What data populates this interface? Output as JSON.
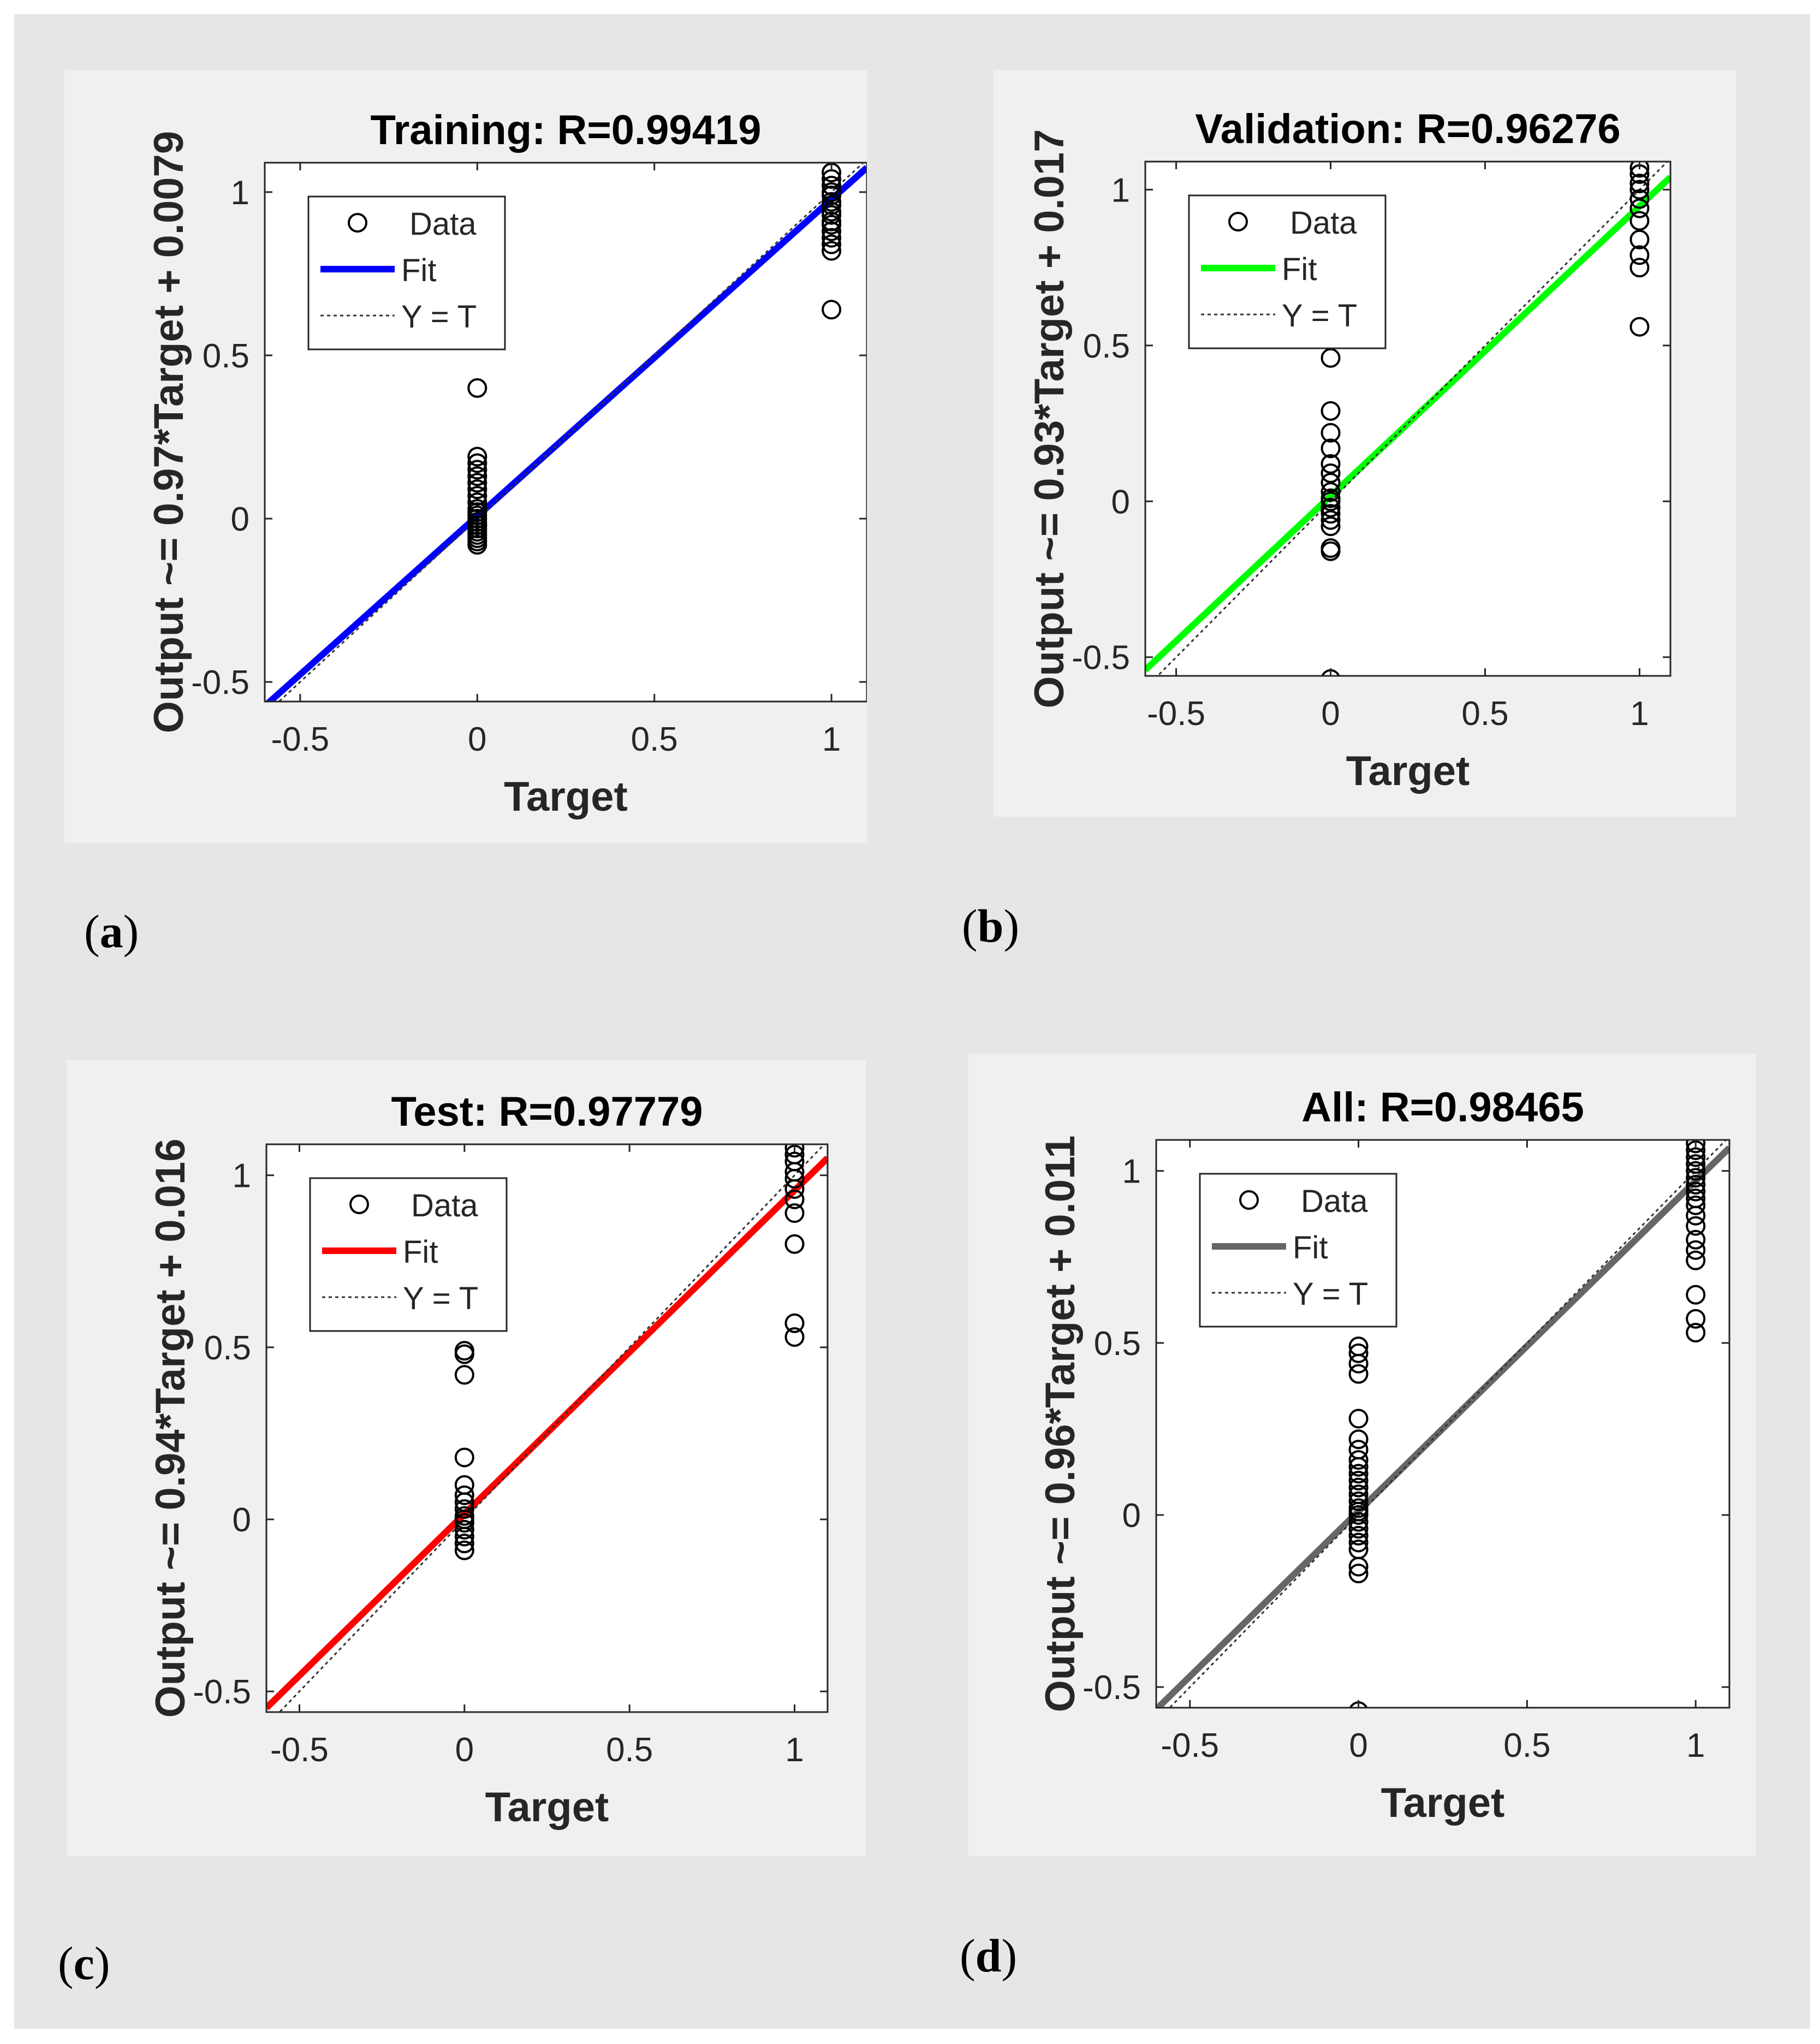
{
  "chart_data": [
    {
      "type": "scatter",
      "panel_label": "a",
      "title": "Training: R=0.99419",
      "xlabel": "Target",
      "ylabel": "Output ~= 0.97*Target + 0.0079",
      "xlim": [
        -0.6,
        1.1
      ],
      "ylim": [
        -0.56,
        1.09
      ],
      "xticks": [
        -0.5,
        0,
        0.5,
        1
      ],
      "yticks": [
        -0.5,
        0,
        0.5,
        1
      ],
      "xtick_labels": [
        "-0.5",
        "0",
        "0.5",
        "1"
      ],
      "ytick_labels": [
        "-0.5",
        "0",
        "0.5",
        "1"
      ],
      "fit": {
        "slope": 0.97,
        "intercept": 0.0079,
        "color": "#0000ff"
      },
      "legend": {
        "position": "top-left",
        "entries": [
          "Data",
          "Fit",
          "Y = T"
        ]
      },
      "series": [
        {
          "name": "Data",
          "x_values": [
            0,
            0,
            0,
            0,
            0,
            0,
            0,
            0,
            0,
            0,
            0,
            0,
            0,
            0,
            0,
            0,
            0,
            0,
            0,
            0,
            0,
            0,
            1,
            1,
            1,
            1,
            1,
            1,
            1,
            1,
            1,
            1,
            1,
            1,
            1,
            1,
            1,
            1
          ],
          "values": [
            0.4,
            0.19,
            0.17,
            0.15,
            0.13,
            0.11,
            0.09,
            0.07,
            0.05,
            0.03,
            0.01,
            -0.01,
            -0.02,
            -0.03,
            -0.04,
            -0.05,
            -0.06,
            -0.07,
            -0.08,
            0.02,
            0.0,
            -0.02,
            1.06,
            1.04,
            1.02,
            1.0,
            0.99,
            0.97,
            0.96,
            0.94,
            0.93,
            0.91,
            0.9,
            0.88,
            0.86,
            0.84,
            0.82,
            0.64
          ]
        }
      ]
    },
    {
      "type": "scatter",
      "panel_label": "b",
      "title": "Validation: R=0.96276",
      "xlabel": "Target",
      "ylabel": "Output ~= 0.93*Target + 0.017",
      "xlim": [
        -0.6,
        1.1
      ],
      "ylim": [
        -0.56,
        1.09
      ],
      "xticks": [
        -0.5,
        0,
        0.5,
        1
      ],
      "yticks": [
        -0.5,
        0,
        0.5,
        1
      ],
      "xtick_labels": [
        "-0.5",
        "0",
        "0.5",
        "1"
      ],
      "ytick_labels": [
        "-0.5",
        "0",
        "0.5",
        "1"
      ],
      "fit": {
        "slope": 0.93,
        "intercept": 0.017,
        "color": "#00ff00"
      },
      "legend": {
        "position": "top-left",
        "entries": [
          "Data",
          "Fit",
          "Y = T"
        ]
      },
      "series": [
        {
          "name": "Data",
          "x_values": [
            0,
            0,
            0,
            0,
            0,
            0,
            0,
            0,
            0,
            0,
            0,
            0,
            0,
            0,
            0,
            0,
            0,
            1,
            1,
            1,
            1,
            1,
            1,
            1,
            1,
            1,
            1,
            1
          ],
          "values": [
            0.46,
            0.29,
            0.22,
            0.17,
            0.12,
            0.09,
            0.06,
            0.03,
            0.0,
            -0.02,
            -0.04,
            -0.06,
            -0.08,
            -0.15,
            -0.16,
            -0.57,
            0.01,
            1.07,
            1.05,
            1.02,
            1.0,
            0.97,
            0.94,
            0.9,
            0.84,
            0.79,
            0.75,
            0.56
          ]
        }
      ]
    },
    {
      "type": "scatter",
      "panel_label": "c",
      "title": "Test: R=0.97779",
      "xlabel": "Target",
      "ylabel": "Output ~= 0.94*Target + 0.016",
      "xlim": [
        -0.6,
        1.1
      ],
      "ylim": [
        -0.56,
        1.09
      ],
      "xticks": [
        -0.5,
        0,
        0.5,
        1
      ],
      "yticks": [
        -0.5,
        0,
        0.5,
        1
      ],
      "xtick_labels": [
        "-0.5",
        "0",
        "0.5",
        "1"
      ],
      "ytick_labels": [
        "-0.5",
        "0",
        "0.5",
        "1"
      ],
      "fit": {
        "slope": 0.94,
        "intercept": 0.016,
        "color": "#ff0000"
      },
      "legend": {
        "position": "top-left",
        "entries": [
          "Data",
          "Fit",
          "Y = T"
        ]
      },
      "series": [
        {
          "name": "Data",
          "x_values": [
            0,
            0,
            0,
            0,
            0,
            0,
            0,
            0,
            0,
            0,
            0,
            0,
            0,
            0,
            0,
            1,
            1,
            1,
            1,
            1,
            1,
            1,
            1,
            1,
            1,
            1
          ],
          "values": [
            0.49,
            0.48,
            0.42,
            0.18,
            0.1,
            0.07,
            0.05,
            0.03,
            0.01,
            -0.01,
            -0.03,
            -0.05,
            -0.07,
            -0.09,
            0.0,
            1.08,
            1.06,
            1.04,
            1.01,
            0.99,
            0.96,
            0.93,
            0.89,
            0.8,
            0.57,
            0.53
          ]
        }
      ]
    },
    {
      "type": "scatter",
      "panel_label": "d",
      "title": "All: R=0.98465",
      "xlabel": "Target",
      "ylabel": "Output ~= 0.96*Target + 0.011",
      "xlim": [
        -0.6,
        1.1
      ],
      "ylim": [
        -0.56,
        1.09
      ],
      "xticks": [
        -0.5,
        0,
        0.5,
        1
      ],
      "yticks": [
        -0.5,
        0,
        0.5,
        1
      ],
      "xtick_labels": [
        "-0.5",
        "0",
        "0.5",
        "1"
      ],
      "ytick_labels": [
        "-0.5",
        "0",
        "0.5",
        "1"
      ],
      "fit": {
        "slope": 0.96,
        "intercept": 0.011,
        "color": "#666666"
      },
      "legend": {
        "position": "top-left",
        "entries": [
          "Data",
          "Fit",
          "Y = T"
        ]
      },
      "series": [
        {
          "name": "Data",
          "x_values": [
            0,
            0,
            0,
            0,
            0,
            0,
            0,
            0,
            0,
            0,
            0,
            0,
            0,
            0,
            0,
            0,
            0,
            0,
            0,
            0,
            0,
            0,
            0,
            0,
            0,
            1,
            1,
            1,
            1,
            1,
            1,
            1,
            1,
            1,
            1,
            1,
            1,
            1,
            1,
            1,
            1,
            1,
            1
          ],
          "values": [
            0.49,
            0.47,
            0.44,
            0.41,
            0.28,
            0.22,
            0.19,
            0.16,
            0.14,
            0.12,
            0.1,
            0.08,
            0.06,
            0.04,
            0.02,
            0.0,
            -0.02,
            -0.04,
            -0.06,
            -0.08,
            -0.1,
            -0.15,
            -0.17,
            -0.57,
            0.01,
            1.08,
            1.06,
            1.04,
            1.02,
            1.0,
            0.98,
            0.96,
            0.94,
            0.92,
            0.9,
            0.87,
            0.84,
            0.8,
            0.77,
            0.74,
            0.64,
            0.57,
            0.53
          ]
        }
      ]
    }
  ],
  "colors": {
    "data_marker": "#000000",
    "identity_line": "#333333",
    "axes_bg": "#ffffff",
    "panel_bg": "#f0f0f0",
    "figure_bg": "#e6e6e6"
  }
}
